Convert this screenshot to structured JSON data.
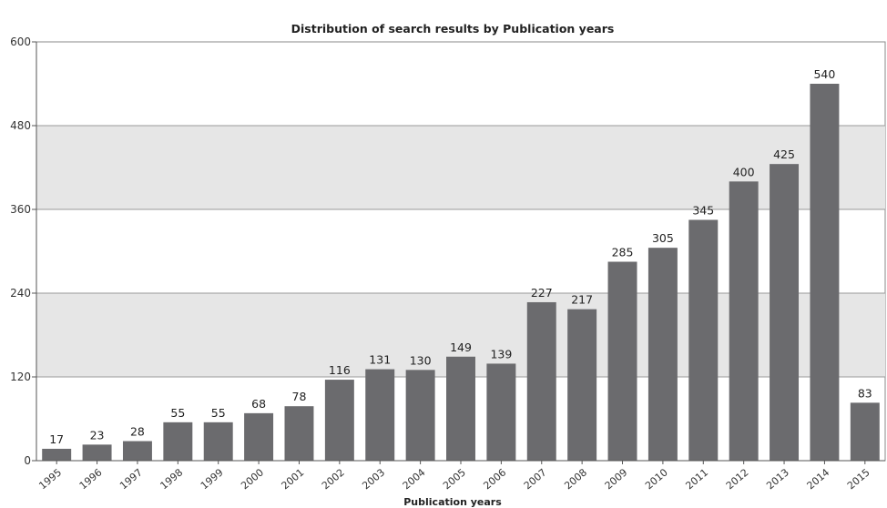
{
  "chart_data": {
    "type": "bar",
    "title": "Distribution of search results by Publication years",
    "xlabel": "Publication years",
    "ylabel": "",
    "ylim": [
      0,
      600
    ],
    "yticks": [
      0,
      120,
      240,
      360,
      480,
      600
    ],
    "grid": true,
    "legend": "none",
    "categories": [
      "1995",
      "1996",
      "1997",
      "1998",
      "1999",
      "2000",
      "2001",
      "2002",
      "2003",
      "2004",
      "2005",
      "2006",
      "2007",
      "2008",
      "2009",
      "2010",
      "2011",
      "2012",
      "2013",
      "2014",
      "2015"
    ],
    "values": [
      17,
      23,
      28,
      55,
      55,
      68,
      78,
      116,
      131,
      130,
      149,
      139,
      227,
      217,
      285,
      305,
      345,
      400,
      425,
      540,
      83
    ],
    "colors": {
      "bar": "#6b6b6e",
      "band": "#e6e6e6",
      "plot_bg": "#ffffff",
      "grid": "#9a9a9a"
    }
  }
}
